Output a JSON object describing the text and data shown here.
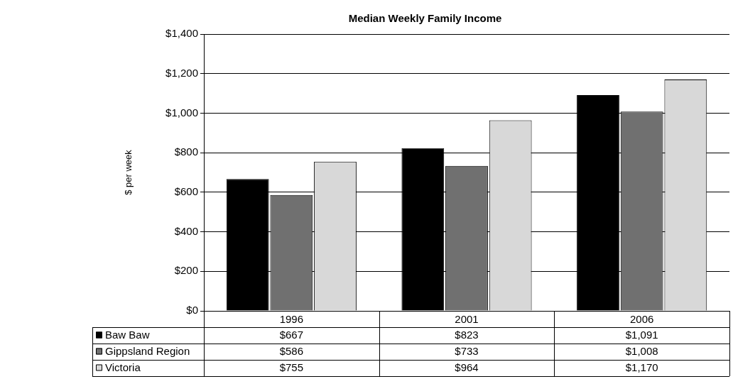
{
  "chart_data": {
    "type": "bar",
    "title": "Median Weekly Family Income",
    "ylabel": "$ per week",
    "categories": [
      "1996",
      "2001",
      "2006"
    ],
    "series": [
      {
        "name": "Baw Baw",
        "color": "#000000",
        "values": [
          667,
          823,
          1091
        ],
        "value_labels": [
          "$667",
          "$823",
          "$1,091"
        ]
      },
      {
        "name": "Gippsland Region",
        "color": "#707070",
        "values": [
          586,
          733,
          1008
        ],
        "value_labels": [
          "$586",
          "$733",
          "$1,008"
        ]
      },
      {
        "name": "Victoria",
        "color": "#d8d8d8",
        "values": [
          755,
          964,
          1170
        ],
        "value_labels": [
          "$755",
          "$964",
          "$1,170"
        ]
      }
    ],
    "ylim": [
      0,
      1400
    ],
    "yticks": [
      {
        "value": 0,
        "label": "$0"
      },
      {
        "value": 200,
        "label": "$200"
      },
      {
        "value": 400,
        "label": "$400"
      },
      {
        "value": 600,
        "label": "$600"
      },
      {
        "value": 800,
        "label": "$800"
      },
      {
        "value": 1000,
        "label": "$1,000"
      },
      {
        "value": 1200,
        "label": "$1,200"
      },
      {
        "value": 1400,
        "label": "$1,400"
      }
    ],
    "grid": "y",
    "legend": "bottom"
  }
}
